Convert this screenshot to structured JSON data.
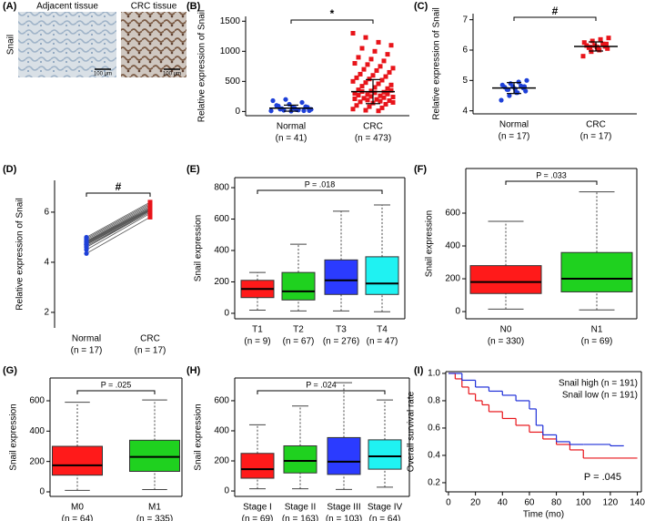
{
  "chart_data": [
    {
      "type": "image",
      "panel": "(A)",
      "ylabel": "Snail",
      "titles": [
        "Adjacent tissue",
        "CRC tissue"
      ],
      "scale_bar": "100 μm"
    },
    {
      "type": "strip",
      "panel": "(B)",
      "ylabel": "Relative expression of Snail",
      "categories": [
        "Normal",
        "CRC"
      ],
      "n_labels": [
        "(n = 41)",
        "(n = 473)"
      ],
      "colors": [
        "#1e40d8",
        "#e8141a"
      ],
      "values": [
        [
          10,
          20,
          30,
          15,
          40,
          60,
          80,
          100,
          120,
          150,
          180,
          200,
          25,
          35,
          45,
          55,
          70,
          90,
          5,
          12
        ],
        [
          1300,
          1230,
          1150,
          1100,
          1050,
          1000,
          950,
          900,
          870,
          840,
          800,
          780,
          750,
          720,
          700,
          680,
          650,
          620,
          600,
          580,
          560,
          540,
          520,
          500,
          480,
          460,
          440,
          420,
          400,
          380,
          360,
          340,
          320,
          300,
          280,
          260,
          240,
          220,
          200,
          180,
          160,
          140,
          120,
          100,
          80,
          60,
          40,
          20,
          10,
          350,
          330,
          310,
          290,
          270,
          250,
          230,
          210,
          190,
          170,
          150
        ]
      ],
      "means": [
        55,
        330
      ],
      "sds": [
        50,
        200
      ],
      "ylim": [
        -70,
        1580
      ],
      "yticks": [
        0,
        500,
        1000,
        1500
      ],
      "significance": "*"
    },
    {
      "type": "strip",
      "panel": "(C)",
      "ylabel": "Relative expression of Snail",
      "categories": [
        "Normal",
        "CRC"
      ],
      "n_labels": [
        "(n = 17)",
        "(n = 17)"
      ],
      "colors": [
        "#1e40d8",
        "#e8141a"
      ],
      "values": [
        [
          4.35,
          4.5,
          4.6,
          4.65,
          4.7,
          4.72,
          4.75,
          4.78,
          4.8,
          4.82,
          4.85,
          4.9,
          4.95,
          5.0,
          4.7,
          4.6,
          4.8
        ],
        [
          5.8,
          5.95,
          6.0,
          6.05,
          6.08,
          6.1,
          6.12,
          6.15,
          6.15,
          6.2,
          6.25,
          6.3,
          6.35,
          6.4,
          6.1,
          6.05,
          6.2
        ]
      ],
      "means": [
        4.75,
        6.12
      ],
      "sds": [
        0.18,
        0.15
      ],
      "ylim": [
        3.9,
        7.2
      ],
      "yticks": [
        4,
        5,
        6,
        7
      ],
      "significance": "#"
    },
    {
      "type": "paired",
      "panel": "(D)",
      "ylabel": "Relative expression of Snail",
      "categories": [
        "Normal",
        "CRC"
      ],
      "n_labels": [
        "(n = 17)",
        "(n = 17)"
      ],
      "colors": [
        "#1e40d8",
        "#e8141a"
      ],
      "values": [
        [
          4.35,
          4.5,
          4.6,
          4.65,
          4.7,
          4.72,
          4.75,
          4.78,
          4.8,
          4.82,
          4.85,
          4.9,
          4.95,
          5.0,
          4.7,
          4.6,
          4.8
        ],
        [
          5.8,
          5.95,
          6.0,
          6.05,
          6.08,
          6.1,
          6.12,
          6.15,
          6.15,
          6.2,
          6.25,
          6.3,
          6.35,
          6.4,
          6.1,
          6.05,
          6.2
        ]
      ],
      "ylim": [
        1.38,
        7.27
      ],
      "yticks": [
        2,
        4,
        6
      ],
      "significance": "#"
    },
    {
      "type": "box",
      "panel": "(E)",
      "ylabel": "Snail expression",
      "categories": [
        "T1",
        "T2",
        "T3",
        "T4"
      ],
      "n_labels": [
        "(n = 9)",
        "(n = 67)",
        "(n = 276)",
        "(n = 47)"
      ],
      "colors": [
        "#ff1a1a",
        "#1fd11f",
        "#2b3bff",
        "#1ff2f2"
      ],
      "boxes": [
        {
          "min": 20,
          "q1": 100,
          "median": 155,
          "q3": 210,
          "max": 260
        },
        {
          "min": 15,
          "q1": 85,
          "median": 140,
          "q3": 260,
          "max": 440
        },
        {
          "min": 15,
          "q1": 120,
          "median": 210,
          "q3": 340,
          "max": 650
        },
        {
          "min": 10,
          "q1": 120,
          "median": 190,
          "q3": 360,
          "max": 690
        }
      ],
      "ylim": [
        -35,
        864
      ],
      "yticks": [
        0,
        200,
        400,
        600,
        800
      ],
      "annotation": "P = .018"
    },
    {
      "type": "box",
      "panel": "(F)",
      "ylabel": "Snail expression",
      "categories": [
        "N0",
        "N1"
      ],
      "n_labels": [
        "(n = 330)",
        "(n = 69)"
      ],
      "colors": [
        "#ff1a1a",
        "#1fd11f"
      ],
      "boxes": [
        {
          "min": 15,
          "q1": 110,
          "median": 180,
          "q3": 280,
          "max": 550
        },
        {
          "min": 10,
          "q1": 120,
          "median": 200,
          "q3": 360,
          "max": 730
        }
      ],
      "ylim": [
        -44,
        872
      ],
      "yticks": [
        0,
        200,
        400,
        600
      ],
      "annotation": "P = .033"
    },
    {
      "type": "box",
      "panel": "(G)",
      "ylabel": "Snail expression",
      "categories": [
        "M0",
        "M1"
      ],
      "n_labels": [
        "(n = 64)",
        "(n = 335)"
      ],
      "colors": [
        "#ff1a1a",
        "#1fd11f"
      ],
      "boxes": [
        {
          "min": 10,
          "q1": 110,
          "median": 175,
          "q3": 300,
          "max": 590
        },
        {
          "min": 15,
          "q1": 135,
          "median": 230,
          "q3": 340,
          "max": 605
        }
      ],
      "ylim": [
        -30,
        750
      ],
      "yticks": [
        0,
        200,
        400,
        600
      ],
      "annotation": "P = .025"
    },
    {
      "type": "box",
      "panel": "(H)",
      "ylabel": "Snail expression",
      "categories": [
        "Stage I",
        "Stage II",
        "Stage III",
        "Stage IV"
      ],
      "n_labels": [
        "(n = 69)",
        "(n = 163)",
        "(n = 103)",
        "(n = 64)"
      ],
      "colors": [
        "#ff1a1a",
        "#1fd11f",
        "#2b3bff",
        "#1ff2f2"
      ],
      "boxes": [
        {
          "min": 15,
          "q1": 85,
          "median": 145,
          "q3": 250,
          "max": 440
        },
        {
          "min": 15,
          "q1": 120,
          "median": 200,
          "q3": 300,
          "max": 565
        },
        {
          "min": 10,
          "q1": 110,
          "median": 195,
          "q3": 355,
          "max": 720
        },
        {
          "min": 25,
          "q1": 145,
          "median": 230,
          "q3": 340,
          "max": 605
        }
      ],
      "ylim": [
        -36,
        751
      ],
      "yticks": [
        0,
        200,
        400,
        600
      ],
      "annotation": "P = .024"
    },
    {
      "type": "line",
      "panel": "(I)",
      "xlabel": "Time (mo)",
      "ylabel": "Overall survival rate",
      "series": [
        {
          "name": "Snail high (n = 191)",
          "color": "#e8141a",
          "x": [
            0,
            5,
            10,
            15,
            20,
            25,
            30,
            40,
            50,
            60,
            70,
            80,
            90,
            100,
            140
          ],
          "values": [
            1,
            0.96,
            0.9,
            0.85,
            0.8,
            0.77,
            0.72,
            0.67,
            0.62,
            0.57,
            0.52,
            0.48,
            0.44,
            0.38,
            0.38
          ]
        },
        {
          "name": "Snail low (n = 191)",
          "color": "#1e2fd8",
          "x": [
            0,
            10,
            20,
            30,
            40,
            50,
            60,
            65,
            70,
            80,
            90,
            100,
            120,
            130
          ],
          "values": [
            1,
            0.95,
            0.9,
            0.87,
            0.84,
            0.8,
            0.74,
            0.62,
            0.55,
            0.5,
            0.48,
            0.48,
            0.47,
            0.47
          ]
        }
      ],
      "xlim": [
        -2,
        143
      ],
      "ylim": [
        0.133,
        1.013
      ],
      "xticks": [
        0,
        20,
        40,
        60,
        80,
        100,
        120,
        140
      ],
      "yticks": [
        0.2,
        0.4,
        0.6,
        0.8,
        {
          "value": 1,
          "label": "1.0"
        }
      ],
      "annotation": "P = .045",
      "legend": "upper right"
    }
  ]
}
